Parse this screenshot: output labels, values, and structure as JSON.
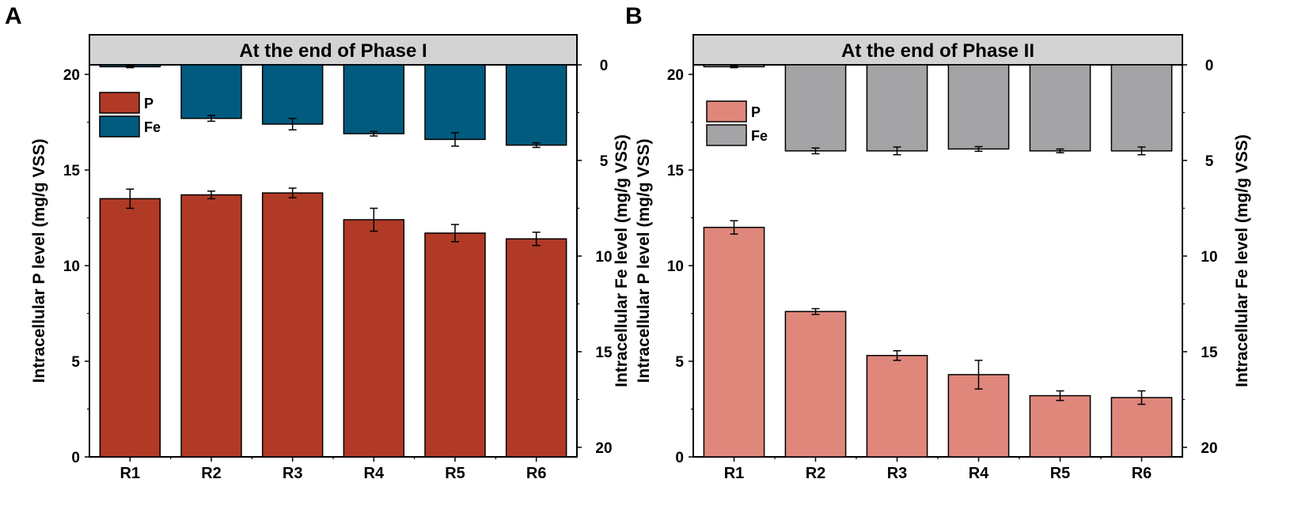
{
  "panels": [
    {
      "letter": "A",
      "banner": "At the end of Phase I",
      "left_ylabel": "Intracellular P level  (mg/g VSS)",
      "right_ylabel": "Intracellular Fe level  (mg/g VSS)",
      "legend": [
        "P",
        "Fe"
      ],
      "colors": {
        "P": "#b03a26",
        "Fe": "#005b7f"
      }
    },
    {
      "letter": "B",
      "banner": "At the end of Phase II",
      "left_ylabel": "Intracellular P level  (mg/g VSS)",
      "right_ylabel": "Intracellular Fe level  (mg/g VSS)",
      "legend": [
        "P",
        "Fe"
      ],
      "colors": {
        "P": "#e0877c",
        "Fe": "#a4a4a6"
      }
    }
  ],
  "chart_data": [
    {
      "type": "bar",
      "title": "At the end of Phase I",
      "categories": [
        "R1",
        "R2",
        "R3",
        "R4",
        "R5",
        "R6"
      ],
      "left_axis": {
        "label": "Intracellular P level  (mg/g VSS)",
        "ylim": [
          0,
          20.5
        ],
        "ticks": [
          0,
          5,
          10,
          15,
          20
        ]
      },
      "right_axis": {
        "label": "Intracellular Fe level  (mg/g VSS)",
        "ylim": [
          0,
          20.5
        ],
        "inverted": true,
        "ticks": [
          0,
          5,
          10,
          15,
          20
        ]
      },
      "series": [
        {
          "name": "P",
          "axis": "left",
          "values": [
            13.5,
            13.7,
            13.8,
            12.4,
            11.7,
            11.4
          ],
          "errors": [
            0.5,
            0.2,
            0.25,
            0.6,
            0.45,
            0.35
          ]
        },
        {
          "name": "Fe",
          "axis": "right",
          "values": [
            0.1,
            2.8,
            3.1,
            3.6,
            3.9,
            4.2
          ],
          "errors": [
            0.05,
            0.15,
            0.3,
            0.12,
            0.35,
            0.12
          ]
        }
      ]
    },
    {
      "type": "bar",
      "title": "At the end of Phase II",
      "categories": [
        "R1",
        "R2",
        "R3",
        "R4",
        "R5",
        "R6"
      ],
      "left_axis": {
        "label": "Intracellular P level  (mg/g VSS)",
        "ylim": [
          0,
          20.5
        ],
        "ticks": [
          0,
          5,
          10,
          15,
          20
        ]
      },
      "right_axis": {
        "label": "Intracellular Fe level  (mg/g VSS)",
        "ylim": [
          0,
          20.5
        ],
        "inverted": true,
        "ticks": [
          0,
          5,
          10,
          15,
          20
        ]
      },
      "series": [
        {
          "name": "P",
          "axis": "left",
          "values": [
            12.0,
            7.6,
            5.3,
            4.3,
            3.2,
            3.1
          ],
          "errors": [
            0.35,
            0.15,
            0.25,
            0.75,
            0.25,
            0.35
          ]
        },
        {
          "name": "Fe",
          "axis": "right",
          "values": [
            0.1,
            4.5,
            4.5,
            4.4,
            4.5,
            4.5
          ],
          "errors": [
            0.05,
            0.15,
            0.2,
            0.12,
            0.1,
            0.2
          ]
        }
      ]
    }
  ]
}
